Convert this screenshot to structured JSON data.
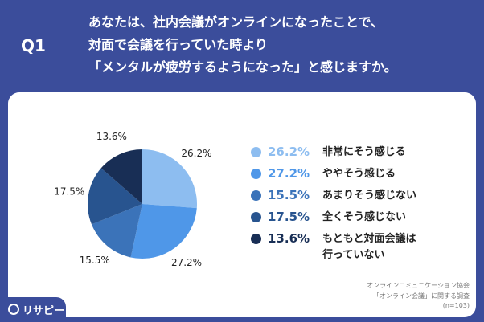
{
  "chart_data": {
    "type": "pie",
    "question_label": "Q1",
    "title_lines": [
      "あなたは、社内会議がオンラインになったことで、",
      "対面で会議を行っていた時より",
      "「メンタルが疲労するようになった」と感じますか。"
    ],
    "categories": [
      "非常にそう感じる",
      "ややそう感じる",
      "あまりそう感じない",
      "全くそう感じない",
      "もともと対面会議は行っていない"
    ],
    "values": [
      26.2,
      27.2,
      15.5,
      17.5,
      13.6
    ],
    "value_labels": [
      "26.2%",
      "27.2%",
      "15.5%",
      "17.5%",
      "13.6%"
    ],
    "colors": [
      "#8dbdf0",
      "#4f97e8",
      "#3b73b9",
      "#28548f",
      "#182e55"
    ],
    "source_lines": [
      "オンラインコミュニケーション協会",
      "「オンライン会議」に関する調査",
      "(n=103)"
    ],
    "logo": "リサピー"
  }
}
